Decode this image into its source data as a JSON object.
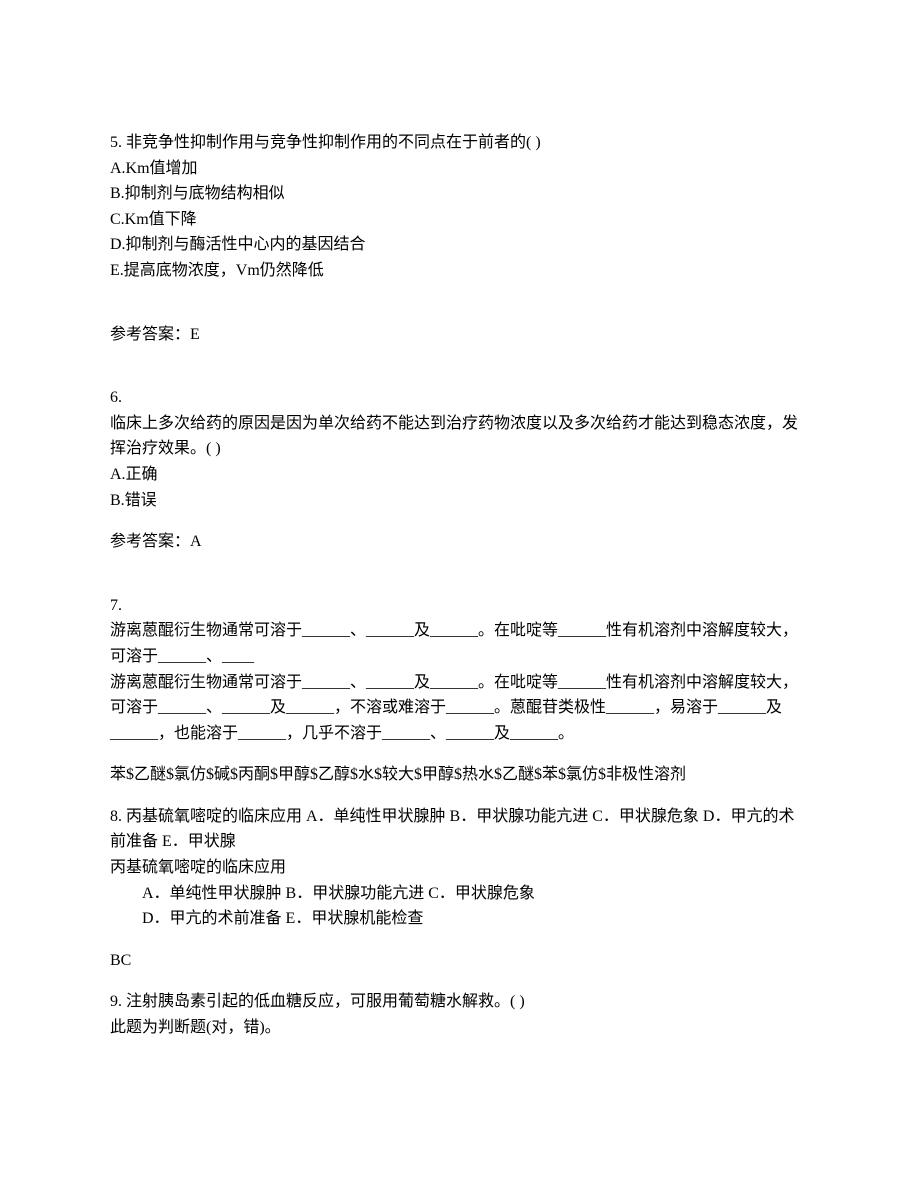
{
  "q5": {
    "prompt": "5. 非竞争性抑制作用与竞争性抑制作用的不同点在于前者的(   )",
    "optA": "A.Km值增加",
    "optB": "B.抑制剂与底物结构相似",
    "optC": "C.Km值下降",
    "optD": "D.抑制剂与酶活性中心内的基因结合",
    "optE": "E.提高底物浓度，Vm仍然降低",
    "answer": "参考答案：E"
  },
  "q6": {
    "num": "6.",
    "prompt": "临床上多次给药的原因是因为单次给药不能达到治疗药物浓度以及多次给药才能达到稳态浓度，发挥治疗效果。(   )",
    "optA": "A.正确",
    "optB": "B.错误",
    "answer": "参考答案：A"
  },
  "q7": {
    "num": "7.",
    "line1": "游离蒽醌衍生物通常可溶于______、______及______。在吡啶等______性有机溶剂中溶解度较大，可溶于______、____",
    "line2": "游离蒽醌衍生物通常可溶于______、______及______。在吡啶等______性有机溶剂中溶解度较大，可溶于______、______及______，不溶或难溶于______。蒽醌苷类极性______，易溶于______及______，也能溶于______，几乎不溶于______、______及______。",
    "answer": "苯$乙醚$氯仿$碱$丙酮$甲醇$乙醇$水$较大$甲醇$热水$乙醚$苯$氯仿$非极性溶剂"
  },
  "q8": {
    "prompt1": "8. 丙基硫氧嘧啶的临床应用   A．单纯性甲状腺肿   B．甲状腺功能亢进   C．甲状腺危象   D．甲亢的术前准备   E．甲状腺",
    "prompt2": "丙基硫氧嘧啶的临床应用",
    "optsLine1": "A．单纯性甲状腺肿   B．甲状腺功能亢进   C．甲状腺危象",
    "optsLine2": "D．甲亢的术前准备   E．甲状腺机能检查",
    "answer": "BC"
  },
  "q9": {
    "prompt": "9. 注射胰岛素引起的低血糖反应，可服用葡萄糖水解救。(   )",
    "note": "此题为判断题(对，错)。"
  }
}
